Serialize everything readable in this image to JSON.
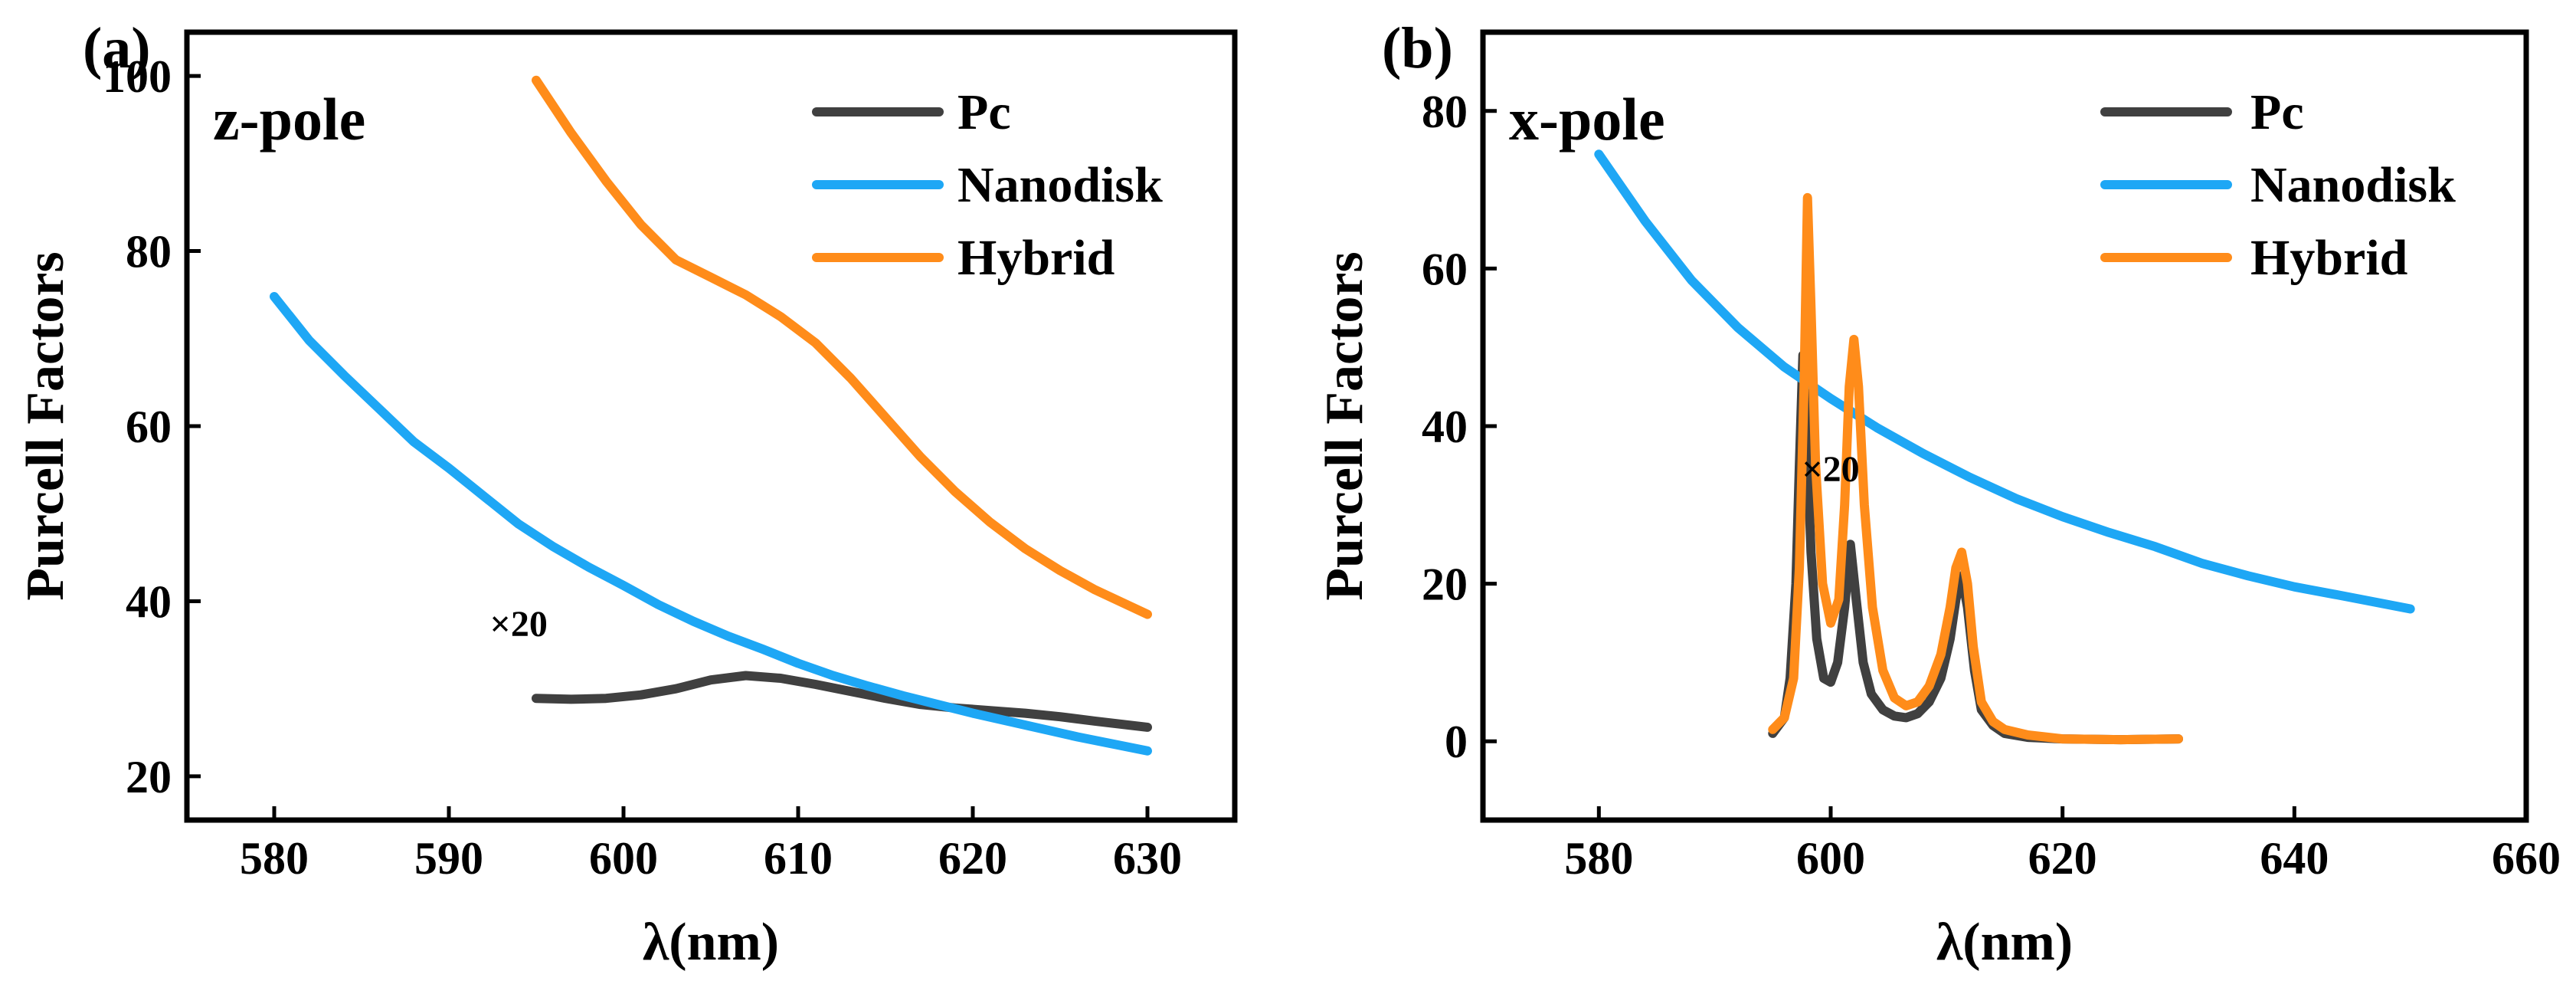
{
  "chart_data": [
    {
      "panel_id": "(a)",
      "panel_label": "z-pole",
      "type": "line",
      "xlabel": "λ(nm)",
      "ylabel": "Purcell Factors",
      "xlim": [
        575,
        635
      ],
      "ylim": [
        15,
        105
      ],
      "xticks": [
        580,
        590,
        600,
        610,
        620,
        630
      ],
      "yticks": [
        20,
        40,
        60,
        80,
        100
      ],
      "legend_position": "top-right",
      "annotations": [
        {
          "text": "×20",
          "x": 594,
          "y": 36
        }
      ],
      "series": [
        {
          "name": "Pc",
          "color": "#404040",
          "x": [
            595,
            597,
            599,
            601,
            603,
            605,
            607,
            609,
            611,
            613,
            615,
            617,
            619,
            621,
            623,
            625,
            627,
            630
          ],
          "y": [
            28.9,
            28.8,
            28.9,
            29.3,
            30.0,
            31.0,
            31.5,
            31.2,
            30.5,
            29.7,
            28.9,
            28.2,
            27.8,
            27.5,
            27.2,
            26.8,
            26.3,
            25.6
          ]
        },
        {
          "name": "Nanodisk",
          "color": "#1EA7F5",
          "x": [
            580,
            582,
            584,
            586,
            588,
            590,
            592,
            594,
            596,
            598,
            600,
            602,
            604,
            606,
            608,
            610,
            612,
            614,
            616,
            618,
            620,
            622,
            624,
            626,
            628,
            630
          ],
          "y": [
            74.8,
            69.8,
            65.8,
            62.0,
            58.2,
            55.2,
            52.0,
            48.8,
            46.2,
            43.9,
            41.8,
            39.6,
            37.7,
            36.0,
            34.5,
            32.9,
            31.5,
            30.3,
            29.2,
            28.2,
            27.2,
            26.3,
            25.4,
            24.5,
            23.7,
            22.9
          ]
        },
        {
          "name": "Hybrid",
          "color": "#FF8C1A",
          "x": [
            595,
            597,
            599,
            601,
            603,
            605,
            607,
            609,
            611,
            613,
            615,
            617,
            619,
            621,
            623,
            625,
            627,
            630
          ],
          "y": [
            99.5,
            93.5,
            88.0,
            83.0,
            79.0,
            77.0,
            75.0,
            72.5,
            69.5,
            65.5,
            61.0,
            56.5,
            52.5,
            49.0,
            46.0,
            43.5,
            41.3,
            38.5
          ]
        }
      ]
    },
    {
      "panel_id": "(b)",
      "panel_label": "x-pole",
      "type": "line",
      "xlabel": "λ(nm)",
      "ylabel": "Purcell Factors",
      "xlim": [
        570,
        660
      ],
      "ylim": [
        -10,
        90
      ],
      "xticks": [
        580,
        600,
        620,
        640,
        660
      ],
      "yticks": [
        0,
        20,
        40,
        60,
        80
      ],
      "legend_position": "top-right",
      "annotations": [
        {
          "text": "×20",
          "x": 600,
          "y": 33
        }
      ],
      "series": [
        {
          "name": "Pc",
          "color": "#404040",
          "x": [
            595,
            596,
            596.5,
            597,
            597.3,
            597.6,
            597.9,
            598.3,
            598.8,
            599.4,
            600,
            600.6,
            601.2,
            601.7,
            602.2,
            602.8,
            603.5,
            604.5,
            605.5,
            606.5,
            607.5,
            608.5,
            609.5,
            610.3,
            610.8,
            611.3,
            611.8,
            612.4,
            613,
            614,
            615,
            617,
            620,
            625,
            630
          ],
          "y": [
            1,
            3,
            8,
            20,
            35,
            49,
            40,
            24,
            13,
            8,
            7.5,
            10,
            17,
            25,
            18,
            10,
            6,
            4,
            3.2,
            3,
            3.5,
            5,
            8,
            13,
            18,
            21,
            17,
            9,
            4,
            2,
            1,
            0.5,
            0.3,
            0.2,
            0.3
          ]
        },
        {
          "name": "Nanodisk",
          "color": "#1EA7F5",
          "x": [
            580,
            584,
            588,
            592,
            596,
            600,
            604,
            608,
            612,
            616,
            620,
            624,
            628,
            632,
            636,
            640,
            644,
            650
          ],
          "y": [
            74.5,
            66.0,
            58.5,
            52.5,
            47.5,
            43.5,
            39.8,
            36.5,
            33.5,
            30.8,
            28.5,
            26.5,
            24.7,
            22.6,
            21.0,
            19.6,
            18.5,
            16.8
          ]
        },
        {
          "name": "Hybrid",
          "color": "#FF8C1A",
          "x": [
            595,
            596,
            596.8,
            597.3,
            597.7,
            598,
            598.3,
            598.7,
            599.3,
            600,
            600.7,
            601.2,
            601.6,
            602,
            602.4,
            602.9,
            603.6,
            604.5,
            605.5,
            606.5,
            607.5,
            608.5,
            609.5,
            610.3,
            610.8,
            611.3,
            611.8,
            612.3,
            613,
            614,
            615,
            617,
            620,
            625,
            630
          ],
          "y": [
            1.5,
            3,
            8,
            22,
            45,
            69,
            55,
            35,
            20,
            15,
            18,
            30,
            45,
            51,
            45,
            30,
            17,
            9,
            5.5,
            4.5,
            5,
            7,
            11,
            17,
            22,
            24,
            20,
            12,
            5,
            2.5,
            1.5,
            0.8,
            0.3,
            0.2,
            0.3
          ]
        }
      ]
    }
  ]
}
